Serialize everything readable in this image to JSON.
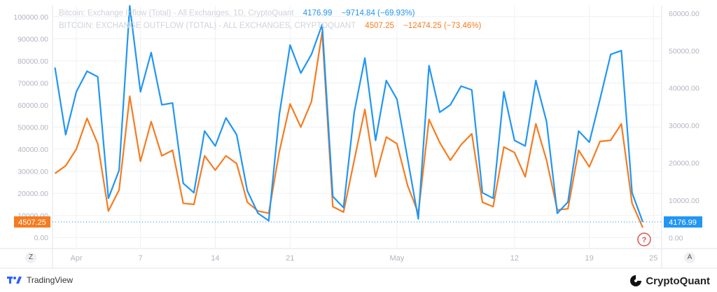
{
  "legend": {
    "inflow": {
      "name": "Bitcoin: Exchange Inflow (Total) - All Exchanges, 1D, CryptoQuant",
      "last": "4176.99",
      "change": "−9714.84 (−69.93%)"
    },
    "outflow": {
      "name": "BITCOIN: EXCHANGE OUTFLOW (TOTAL) - ALL EXCHANGES, CRYPTOQUANT",
      "last": "4507.25",
      "change": "−12474.25 (−73.46%)"
    }
  },
  "colors": {
    "inflow": "#2196f3",
    "outflow": "#f57c20",
    "grid": "#eef0f3",
    "axis_text": "#b2b5be",
    "marker": "#e05252"
  },
  "branding": {
    "tradingview": "TradingView",
    "cryptoquant": "CryptoQuant"
  },
  "scale_buttons": {
    "left": "Z",
    "right": "A"
  },
  "chart_data": {
    "type": "line",
    "x_start": "2021-03-30",
    "x_ticks": [
      "Apr",
      "7",
      "14",
      "21",
      "May",
      "12",
      "19",
      "25"
    ],
    "y_left": {
      "ticks": [
        "0.00",
        "10000.00",
        "20000.00",
        "30000.00",
        "40000.00",
        "50000.00",
        "60000.00",
        "70000.00",
        "80000.00",
        "90000.00",
        "100000.00"
      ],
      "range": [
        -5000,
        105000
      ]
    },
    "y_right": {
      "ticks": [
        "0.00",
        "10000.00",
        "20000.00",
        "30000.00",
        "40000.00",
        "50000.00",
        "60000.00"
      ],
      "range": [
        -2950,
        62050
      ]
    },
    "last_value_labels": {
      "left": "4507.25",
      "right": "4176.99"
    },
    "pending_marker": "?",
    "series": [
      {
        "name": "Bitcoin: Exchange Inflow (Total)",
        "axis": "right",
        "values": [
          45500,
          27500,
          39000,
          44500,
          43000,
          10500,
          18000,
          62000,
          39000,
          49500,
          35500,
          36000,
          14500,
          12000,
          28500,
          24500,
          32000,
          27500,
          12500,
          6500,
          4500,
          33000,
          51500,
          44000,
          49000,
          57000,
          11000,
          8000,
          33500,
          48000,
          26000,
          42000,
          37000,
          21000,
          5000,
          46000,
          33500,
          35500,
          40500,
          39500,
          12000,
          10500,
          39000,
          26000,
          24500,
          42000,
          31000,
          6500,
          9500,
          28500,
          25500,
          37000,
          49000,
          50000,
          12000,
          4177
        ]
      },
      {
        "name": "Bitcoin: Exchange Outflow (Total)",
        "axis": "left",
        "values": [
          29000,
          32500,
          40000,
          54000,
          42500,
          12000,
          21500,
          64000,
          34500,
          52500,
          37000,
          39500,
          15500,
          15000,
          37000,
          30500,
          37000,
          33500,
          16000,
          12000,
          11000,
          39000,
          60500,
          50000,
          61500,
          93000,
          14000,
          11500,
          35000,
          58000,
          27500,
          45500,
          42500,
          23500,
          11000,
          53500,
          43000,
          35000,
          42000,
          47000,
          16000,
          14000,
          41000,
          38500,
          27500,
          51500,
          35000,
          12500,
          13000,
          39500,
          32000,
          43500,
          44000,
          51500,
          15500,
          4507
        ]
      }
    ]
  }
}
